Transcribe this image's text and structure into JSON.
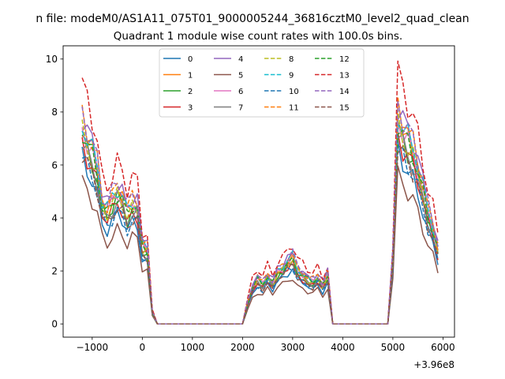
{
  "figure": {
    "suptitle": "n file: modeM0/AS1A11_075T01_9000005244_36816cztM0_level2_quad_clean",
    "offset_text": "+3.96e8"
  },
  "chart_data": {
    "type": "line",
    "title": "Quadrant 1 module wise count rates with 100.0s bins.",
    "xlabel": "",
    "ylabel": "",
    "x_offset": 396000000,
    "xlim": [
      -1580,
      6230
    ],
    "ylim": [
      -0.5,
      10.5
    ],
    "xticks": [
      -1000,
      0,
      1000,
      2000,
      3000,
      4000,
      5000,
      6000
    ],
    "xtick_labels": [
      "−1000",
      "0",
      "1000",
      "2000",
      "3000",
      "4000",
      "5000",
      "6000"
    ],
    "yticks": [
      0,
      2,
      4,
      6,
      8,
      10
    ],
    "ytick_labels": [
      "0",
      "2",
      "4",
      "6",
      "8",
      "10"
    ],
    "legend": {
      "location": "upper-center",
      "ncol": 4
    },
    "series": [
      {
        "name": "0",
        "color": "#1f77b4",
        "dash": "solid",
        "scale": 0.76
      },
      {
        "name": "1",
        "color": "#ff7f0e",
        "dash": "solid",
        "scale": 0.92
      },
      {
        "name": "2",
        "color": "#2ca02c",
        "dash": "solid",
        "scale": 0.86
      },
      {
        "name": "3",
        "color": "#d62728",
        "dash": "solid",
        "scale": 0.83
      },
      {
        "name": "4",
        "color": "#9467bd",
        "dash": "solid",
        "scale": 0.96
      },
      {
        "name": "5",
        "color": "#8c564b",
        "dash": "solid",
        "scale": 0.65
      },
      {
        "name": "6",
        "color": "#e377c2",
        "dash": "solid",
        "scale": 0.9
      },
      {
        "name": "7",
        "color": "#7f7f7f",
        "dash": "solid",
        "scale": 0.84
      },
      {
        "name": "8",
        "color": "#bcbd22",
        "dash": "dashed",
        "scale": 0.88
      },
      {
        "name": "9",
        "color": "#17becf",
        "dash": "dashed",
        "scale": 0.93
      },
      {
        "name": "10",
        "color": "#1f77b4",
        "dash": "dashed",
        "scale": 0.78
      },
      {
        "name": "11",
        "color": "#ff7f0e",
        "dash": "dashed",
        "scale": 0.95
      },
      {
        "name": "12",
        "color": "#2ca02c",
        "dash": "dashed",
        "scale": 0.89
      },
      {
        "name": "13",
        "color": "#d62728",
        "dash": "dashed",
        "scale": 1.1
      },
      {
        "name": "14",
        "color": "#9467bd",
        "dash": "dashed",
        "scale": 0.97
      },
      {
        "name": "15",
        "color": "#8c564b",
        "dash": "dashed",
        "scale": 0.8
      }
    ],
    "base_profile": {
      "x": [
        -1200,
        -1100,
        -1000,
        -900,
        -800,
        -700,
        -600,
        -500,
        -400,
        -300,
        -200,
        -100,
        0,
        100,
        200,
        300,
        400,
        500,
        600,
        700,
        800,
        900,
        1000,
        1100,
        1200,
        1300,
        1400,
        1500,
        1600,
        1700,
        1800,
        1900,
        2000,
        2100,
        2200,
        2300,
        2400,
        2500,
        2600,
        2700,
        2800,
        2900,
        3000,
        3100,
        3200,
        3300,
        3400,
        3500,
        3600,
        3700,
        3800,
        3900,
        4000,
        4100,
        4200,
        4300,
        4400,
        4500,
        4600,
        4700,
        4800,
        4900,
        5000,
        5100,
        5200,
        5300,
        5400,
        5500,
        5600,
        5700,
        5800,
        5900
      ],
      "y": [
        8.2,
        7.6,
        7.1,
        6.4,
        5.0,
        4.7,
        5.1,
        5.5,
        5.2,
        4.6,
        5.0,
        4.9,
        3.2,
        3.1,
        0.5,
        0.0,
        0.0,
        0.0,
        0.0,
        0.0,
        0.0,
        0.0,
        0.0,
        0.0,
        0.0,
        0.0,
        0.0,
        0.0,
        0.0,
        0.0,
        0.0,
        0.0,
        0.0,
        0.85,
        1.55,
        1.85,
        1.65,
        2.0,
        1.7,
        2.15,
        2.3,
        2.55,
        2.75,
        2.2,
        2.05,
        1.85,
        1.75,
        1.95,
        1.6,
        2.05,
        0.0,
        0.0,
        0.0,
        0.0,
        0.0,
        0.0,
        0.0,
        0.0,
        0.0,
        0.0,
        0.0,
        0.0,
        2.8,
        8.6,
        8.0,
        7.6,
        7.2,
        6.5,
        5.6,
        4.6,
        4.0,
        3.1
      ]
    }
  }
}
